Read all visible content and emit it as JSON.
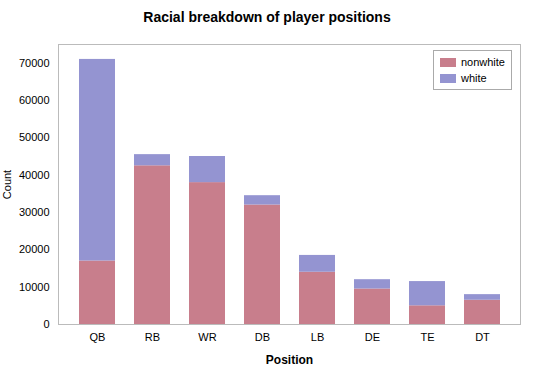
{
  "chart_data": {
    "type": "bar",
    "title": "Racial breakdown of player positions",
    "categories": [
      "QB",
      "RB",
      "WR",
      "DB",
      "LB",
      "DE",
      "TE",
      "DT"
    ],
    "series": [
      {
        "name": "nonwhite",
        "color": "#c27080",
        "values": [
          17000,
          42500,
          38000,
          32000,
          14000,
          9500,
          5000,
          6500
        ]
      },
      {
        "name": "white",
        "color": "#8888cc",
        "values": [
          54000,
          3000,
          7000,
          2500,
          4500,
          2500,
          6500,
          1500
        ]
      }
    ],
    "xlabel": "Position",
    "ylabel": "Count",
    "ylim": [
      0,
      75000
    ],
    "yticks": [
      0,
      10000,
      20000,
      30000,
      40000,
      50000,
      60000,
      70000
    ],
    "stacked": true,
    "legend": "upper right",
    "grid": false
  }
}
